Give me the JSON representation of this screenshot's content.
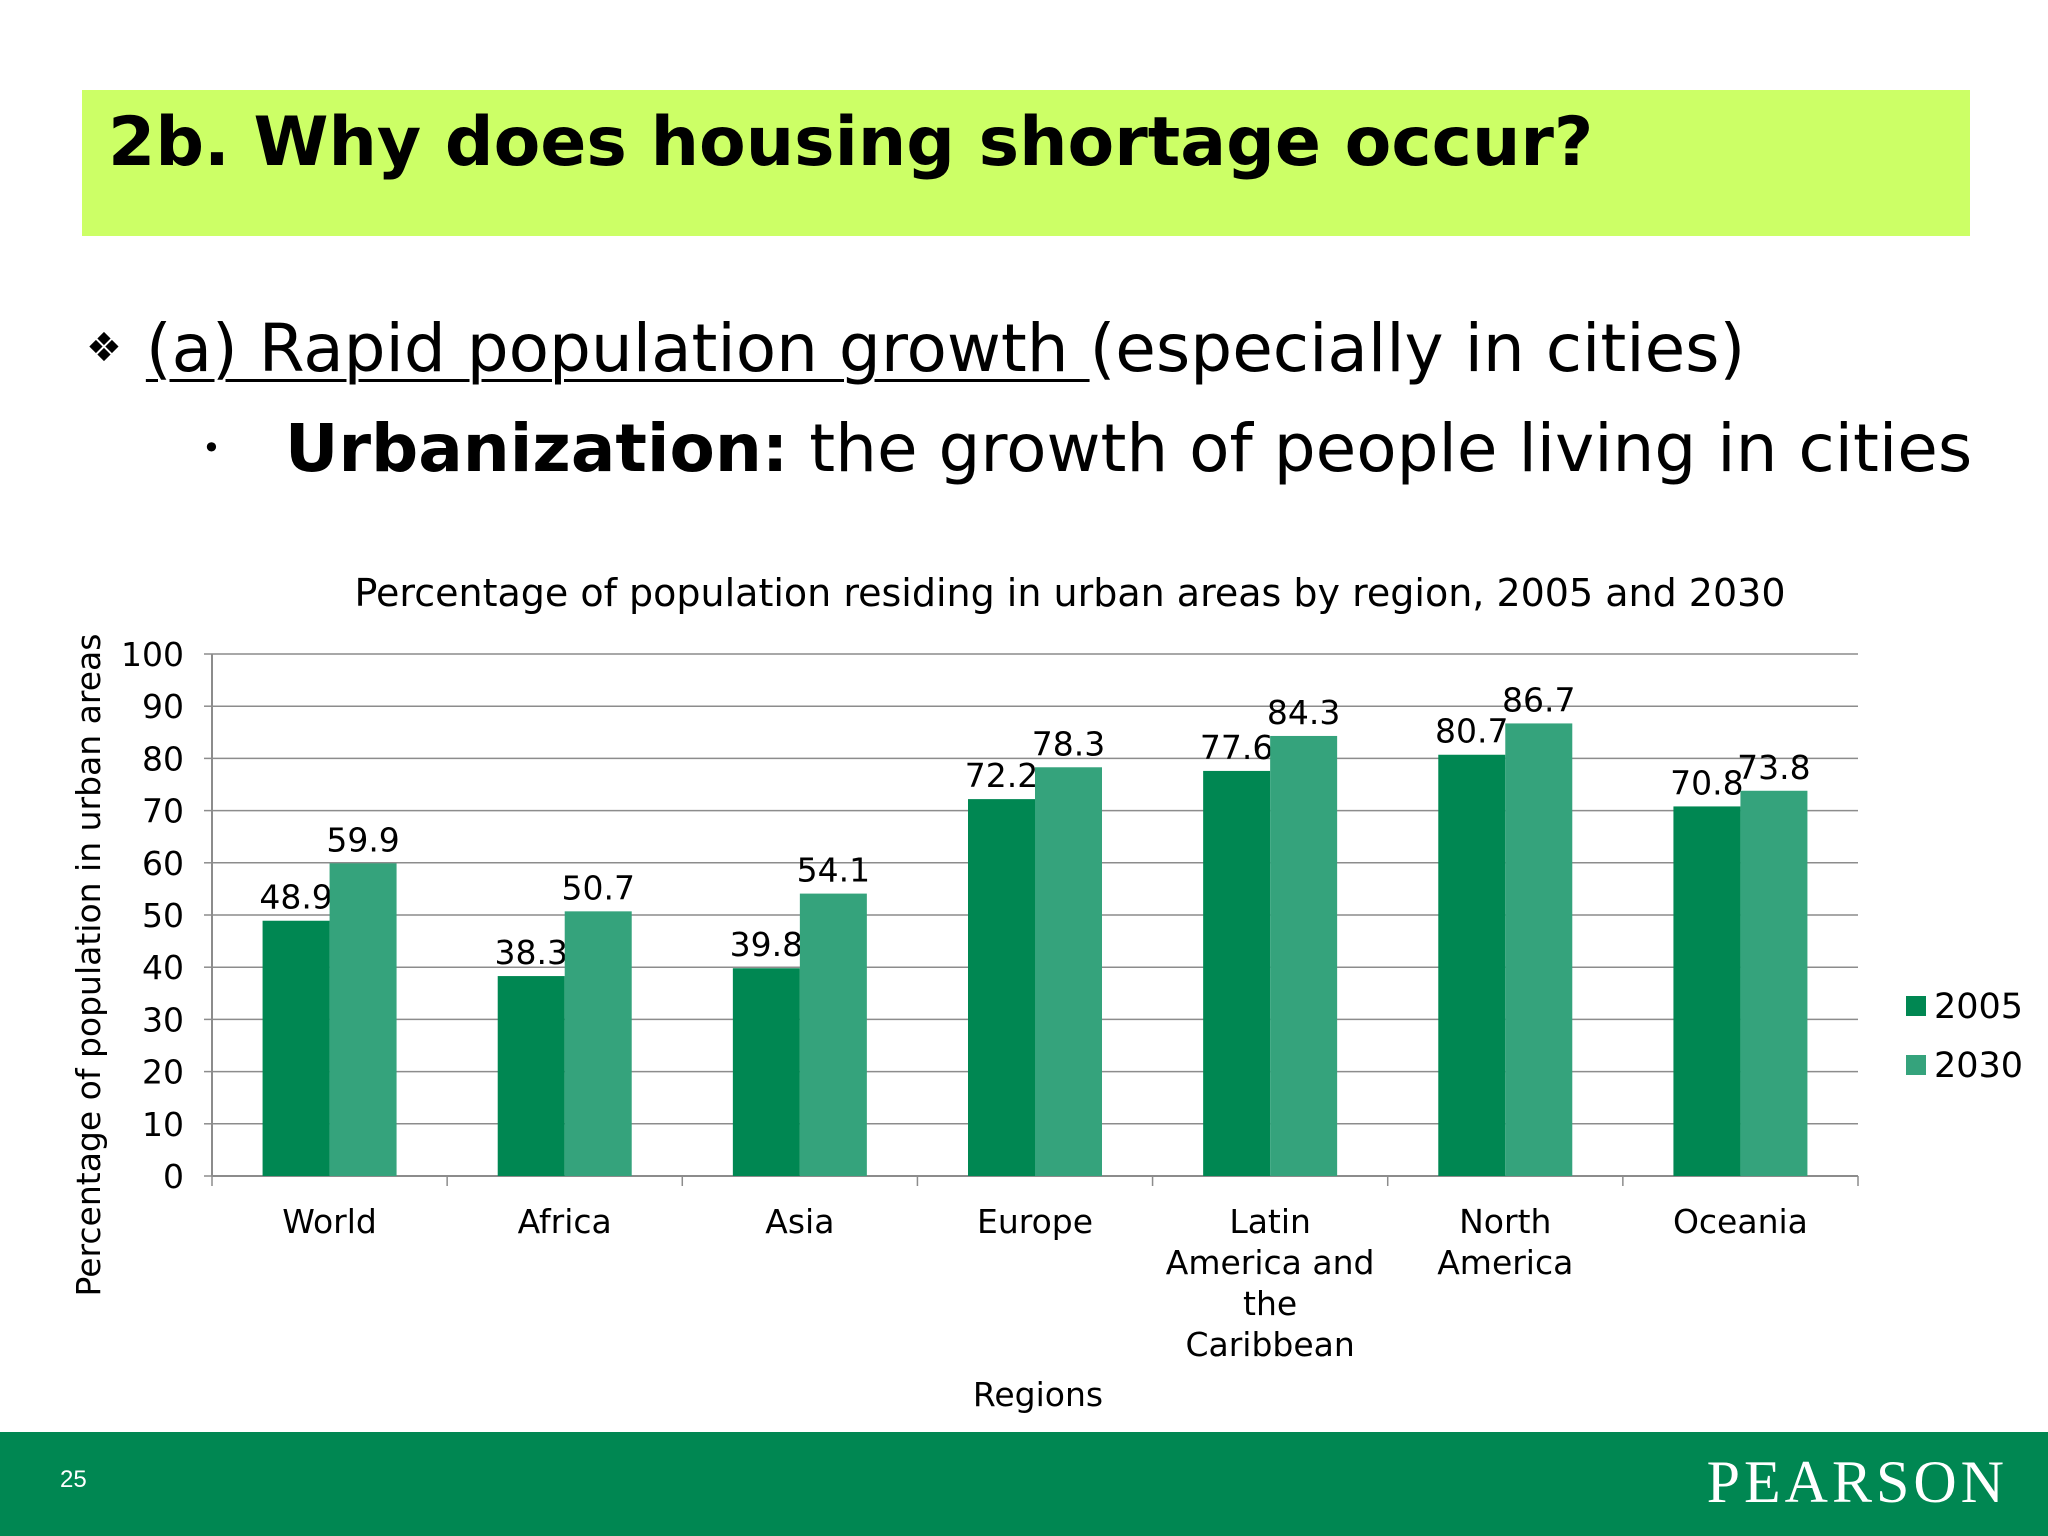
{
  "slide": {
    "title": "2b. Why does housing shortage occur?",
    "bullet1_underlined": "(a) Rapid population growth ",
    "bullet1_rest": "(especially in cities)",
    "bullet2_term": "Urbanization:",
    "bullet2_rest": " the growth of people living in cities",
    "diamond_icon": "❖",
    "dot_icon": "•",
    "page_number": "25",
    "logo_text": "PEARSON"
  },
  "colors": {
    "title_band": "#ccff66",
    "footer": "#008752",
    "series_2005": "#008752",
    "series_2030": "#35a37c"
  },
  "chart_data": {
    "type": "bar",
    "title": "Percentage of population residing in urban areas by region, 2005 and 2030",
    "xlabel": "Regions",
    "ylabel": "Percentage of population in urban areas",
    "ylim": [
      0,
      100
    ],
    "yticks": [
      0,
      10,
      20,
      30,
      40,
      50,
      60,
      70,
      80,
      90,
      100
    ],
    "grid": true,
    "legend_position": "right",
    "categories": [
      [
        "World"
      ],
      [
        "Africa"
      ],
      [
        "Asia"
      ],
      [
        "Europe"
      ],
      [
        "Latin",
        "America and",
        "the",
        "Caribbean"
      ],
      [
        "North",
        "America"
      ],
      [
        "Oceania"
      ]
    ],
    "series": [
      {
        "name": "2005",
        "color": "#008752",
        "values": [
          48.9,
          38.3,
          39.8,
          72.2,
          77.6,
          80.7,
          70.8
        ]
      },
      {
        "name": "2030",
        "color": "#35a37c",
        "values": [
          59.9,
          50.7,
          54.1,
          78.3,
          84.3,
          86.7,
          73.8
        ]
      }
    ]
  }
}
